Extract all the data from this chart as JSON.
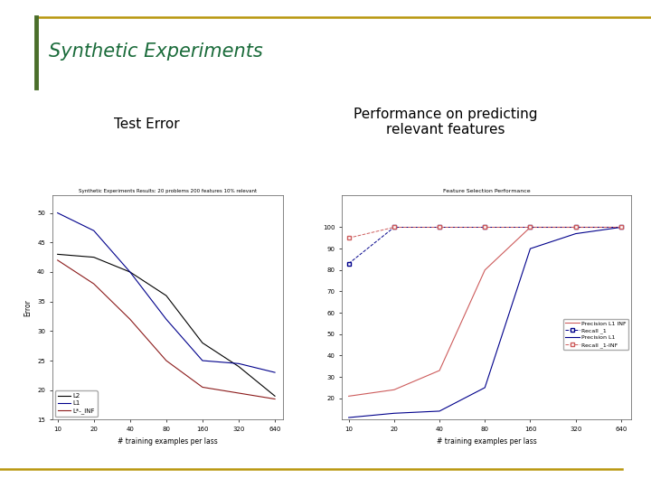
{
  "slide_title": "Synthetic Experiments",
  "slide_bg": "#ffffff",
  "title_color": "#1a6b3a",
  "border_color": "#b8960c",
  "left_bar_color": "#4a6e2a",
  "left_subtitle": "Test Error",
  "right_subtitle": "Performance on predicting\nrelevant features",
  "left_chart_title": "Synthetic Experiments Results: 20 problems 200 features 10% relevant",
  "right_chart_title": "Feature Selection Performance",
  "x_ticks": [
    10,
    20,
    40,
    80,
    160,
    320,
    640
  ],
  "x_label": "# training examples per lass",
  "left_ylabel": "Error",
  "left_ylim": [
    15,
    53
  ],
  "left_yticks": [
    15,
    20,
    25,
    30,
    35,
    40,
    45,
    50
  ],
  "right_ylim": [
    10,
    115
  ],
  "right_yticks": [
    20,
    30,
    40,
    50,
    60,
    70,
    80,
    90,
    100
  ],
  "left_lines": [
    {
      "name": "L2",
      "x": [
        10,
        20,
        40,
        80,
        160,
        320,
        640
      ],
      "y": [
        43,
        42.5,
        40,
        36,
        28,
        24,
        19
      ],
      "color": "#000000",
      "linestyle": "-",
      "linewidth": 0.8
    },
    {
      "name": "L1",
      "x": [
        10,
        20,
        40,
        80,
        160,
        320,
        640
      ],
      "y": [
        50,
        47,
        40,
        32,
        25,
        24.5,
        23
      ],
      "color": "#00008b",
      "linestyle": "-",
      "linewidth": 0.8
    },
    {
      "name": "L*-_INF",
      "x": [
        10,
        20,
        40,
        80,
        160,
        320,
        640
      ],
      "y": [
        42,
        38,
        32,
        25,
        20.5,
        19.5,
        18.5
      ],
      "color": "#8b1a1a",
      "linestyle": "-",
      "linewidth": 0.8
    }
  ],
  "right_lines": [
    {
      "name": "Precision L1 INF",
      "x": [
        10,
        20,
        40,
        80,
        160,
        320,
        640
      ],
      "y": [
        21,
        24,
        33,
        80,
        100,
        100,
        100
      ],
      "color": "#cd5c5c",
      "linestyle": "-",
      "linewidth": 0.8,
      "marker": null
    },
    {
      "name": "Recall _1",
      "x": [
        10,
        20,
        40,
        80,
        160,
        320,
        640
      ],
      "y": [
        83,
        100,
        100,
        100,
        100,
        100,
        100
      ],
      "color": "#00008b",
      "linestyle": "--",
      "linewidth": 0.7,
      "marker": "s",
      "markerfacecolor": "white",
      "markersize": 3
    },
    {
      "name": "Precision L1",
      "x": [
        10,
        20,
        40,
        80,
        160,
        320,
        640
      ],
      "y": [
        11,
        13,
        14,
        25,
        90,
        97,
        100
      ],
      "color": "#00008b",
      "linestyle": "-",
      "linewidth": 0.8,
      "marker": null
    },
    {
      "name": "Recall _1-INF",
      "x": [
        10,
        20,
        40,
        80,
        160,
        320,
        640
      ],
      "y": [
        95,
        100,
        100,
        100,
        100,
        100,
        100
      ],
      "color": "#cd5c5c",
      "linestyle": "--",
      "linewidth": 0.7,
      "marker": "s",
      "markerfacecolor": "white",
      "markersize": 3
    }
  ]
}
